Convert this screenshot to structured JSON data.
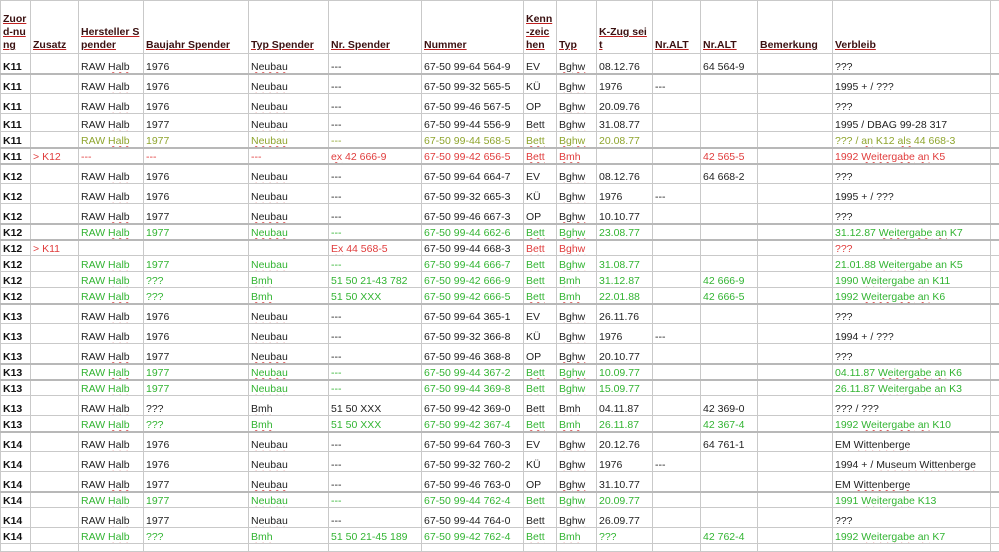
{
  "colors": {
    "black": "#222222",
    "olive": "#8fa52e",
    "red": "#e03c3c",
    "green": "#32b432",
    "grid": "#c9c9c9"
  },
  "headers": [
    "Zuord-nung",
    "Zusatz",
    "Hersteller Spender",
    "Baujahr Spender",
    "Typ Spender",
    "Nr. Spender",
    "Nummer",
    "Kenn-zeichen",
    "Typ",
    "K-Zug seit",
    "Nr.ALT",
    "Nr.ALT",
    "Bemerkung",
    "Verbleib"
  ],
  "rows": [
    {
      "color": "black",
      "cells": [
        "K11",
        "",
        "RAW Halb",
        "1976",
        "Neubau",
        "---",
        "67-50 99-64 564-9",
        "EV",
        "Bghw",
        "08.12.76",
        "",
        "64 564-9",
        "",
        "???"
      ]
    },
    {
      "color": "black",
      "cells": [
        "K11",
        "",
        "RAW Halb",
        "1976",
        "Neubau",
        "---",
        "67-50 99-32 565-5",
        "KÜ",
        "Bghw",
        "1976",
        "---",
        "",
        "",
        "1995 + /  ???"
      ]
    },
    {
      "color": "black",
      "cells": [
        "K11",
        "",
        "RAW Halb",
        "1976",
        "Neubau",
        "---",
        "67-50 99-46 567-5",
        "OP",
        "Bghw",
        "20.09.76",
        "",
        "",
        "",
        "???"
      ]
    },
    {
      "color": "black",
      "cells": [
        "K11",
        "",
        "RAW Halb",
        "1977",
        "Neubau",
        "---",
        "67-50 99-44 556-9",
        "Bett",
        "Bghw",
        "31.08.77",
        "",
        "",
        "",
        "1995 / DBAG 99-28 317"
      ]
    },
    {
      "color": "olive",
      "cells": [
        "K11",
        "",
        "RAW Halb",
        "1977",
        "Neubau",
        "---",
        "67-50 99-44 568-5",
        "Bett",
        "Bghw",
        "20.08.77",
        "",
        "",
        "",
        "??? / an K12 als 44 668-3"
      ]
    },
    {
      "color": "red",
      "cells": [
        "K11",
        "> K12",
        "---",
        "---",
        "---",
        "ex 42 666-9",
        "67-50 99-42 656-5",
        "Bett",
        "Bmh",
        "",
        "",
        "42 565-5",
        "",
        "1992 Weitergabe an K5"
      ]
    },
    {
      "color": "black",
      "cells": [
        "K12",
        "",
        "RAW Halb",
        "1976",
        "Neubau",
        "---",
        "67-50 99-64 664-7",
        "EV",
        "Bghw",
        "08.12.76",
        "",
        "64 668-2",
        "",
        "???"
      ]
    },
    {
      "color": "black",
      "cells": [
        "K12",
        "",
        "RAW Halb",
        "1976",
        "Neubau",
        "---",
        "67-50 99-32 665-3",
        "KÜ",
        "Bghw",
        "1976",
        "---",
        "",
        "",
        "1995 + /  ???"
      ]
    },
    {
      "color": "black",
      "cells": [
        "K12",
        "",
        "RAW Halb",
        "1977",
        "Neubau",
        "---",
        "67-50 99-46 667-3",
        "OP",
        "Bghw",
        "10.10.77",
        "",
        "",
        "",
        "???"
      ]
    },
    {
      "color": "green",
      "cells": [
        "K12",
        "",
        "RAW Halb",
        "1977",
        "Neubau",
        "---",
        "67-50 99-44 662-6",
        "Bett",
        "Bghw",
        "23.08.77",
        "",
        "",
        "",
        "31.12.87 Weitergabe an K7"
      ]
    },
    {
      "color": "red",
      "black_cols": [
        6
      ],
      "cells": [
        "K12",
        "> K11",
        "",
        "",
        "",
        "Ex 44 568-5",
        "67-50 99-44 668-3",
        "Bett",
        "Bghw",
        "",
        "",
        "",
        "",
        "???"
      ]
    },
    {
      "color": "green",
      "cells": [
        "K12",
        "",
        "RAW Halb",
        "1977",
        "Neubau",
        "---",
        "67-50 99-44 666-7",
        "Bett",
        "Bghw",
        "31.08.77",
        "",
        "",
        "",
        "21.01.88 Weitergabe an K5"
      ]
    },
    {
      "color": "green",
      "cells": [
        "K12",
        "",
        "RAW Halb",
        "???",
        "Bmh",
        "51 50 21-43 782",
        "67-50 99-42 666-9",
        "Bett",
        "Bmh",
        "31.12.87",
        "",
        "42 666-9",
        "",
        "1990 Weitergabe an K11"
      ]
    },
    {
      "color": "green",
      "cells": [
        "K12",
        "",
        "RAW Halb",
        "???",
        "Bmh",
        "51 50 XXX",
        "67-50 99-42 666-5",
        "Bett",
        "Bmh",
        "22.01.88",
        "",
        "42 666-5",
        "",
        "1992 Weitergabe an K6"
      ]
    },
    {
      "color": "black",
      "cells": [
        "K13",
        "",
        "RAW Halb",
        "1976",
        "Neubau",
        "---",
        "67-50 99-64 365-1",
        "EV",
        "Bghw",
        "26.11.76",
        "",
        "",
        "",
        "???"
      ]
    },
    {
      "color": "black",
      "cells": [
        "K13",
        "",
        "RAW Halb",
        "1976",
        "Neubau",
        "---",
        "67-50 99-32 366-8",
        "KÜ",
        "Bghw",
        "1976",
        "---",
        "",
        "",
        "1994 + / ???"
      ]
    },
    {
      "color": "black",
      "cells": [
        "K13",
        "",
        "RAW Halb",
        "1977",
        "Neubau",
        "---",
        "67-50 99-46 368-8",
        "OP",
        "Bghw",
        "20.10.77",
        "",
        "",
        "",
        "???"
      ]
    },
    {
      "color": "green",
      "cells": [
        "K13",
        "",
        "RAW Halb",
        "1977",
        "Neubau",
        "---",
        "67-50 99-44 367-2",
        "Bett",
        "Bghw",
        "10.09.77",
        "",
        "",
        "",
        "04.11.87 Weitergabe an K6"
      ]
    },
    {
      "color": "green",
      "cells": [
        "K13",
        "",
        "RAW Halb",
        "1977",
        "Neubau",
        "---",
        "67-50 99-44 369-8",
        "Bett",
        "Bghw",
        "15.09.77",
        "",
        "",
        "",
        "26.11.87 Weitergabe an K3"
      ]
    },
    {
      "color": "black",
      "cells": [
        "K13",
        "",
        "RAW Halb",
        "???",
        "Bmh",
        "51 50 XXX",
        "67-50 99-42 369-0",
        "Bett",
        "Bmh",
        "04.11.87",
        "",
        "42 369-0",
        "",
        "??? / ???"
      ]
    },
    {
      "color": "green",
      "cells": [
        "K13",
        "",
        "RAW Halb",
        "???",
        "Bmh",
        "51 50 XXX",
        "67-50 99-42 367-4",
        "Bett",
        "Bmh",
        "26.11.87",
        "",
        "42 367-4",
        "",
        "1992 Weitergabe an K10"
      ]
    },
    {
      "color": "black",
      "cells": [
        "K14",
        "",
        "RAW Halb",
        "1976",
        "Neubau",
        "---",
        "67-50 99-64 760-3",
        "EV",
        "Bghw",
        "20.12.76",
        "",
        "64 761-1",
        "",
        "EM Wittenberge"
      ]
    },
    {
      "color": "black",
      "cells": [
        "K14",
        "",
        "RAW Halb",
        "1976",
        "Neubau",
        "---",
        "67-50 99-32 760-2",
        "KÜ",
        "Bghw",
        "1976",
        "---",
        "",
        "",
        "1994 + / Museum Wittenberge"
      ]
    },
    {
      "color": "black",
      "cells": [
        "K14",
        "",
        "RAW Halb",
        "1977",
        "Neubau",
        "---",
        "67-50 99-46 763-0",
        "OP",
        "Bghw",
        "31.10.77",
        "",
        "",
        "",
        "EM Wittenberge"
      ]
    },
    {
      "color": "green",
      "cells": [
        "K14",
        "",
        "RAW Halb",
        "1977",
        "Neubau",
        "---",
        "67-50 99-44 762-4",
        "Bett",
        "Bghw",
        "20.09.77",
        "",
        "",
        "",
        "1991 Weitergabe K13"
      ]
    },
    {
      "color": "black",
      "cells": [
        "K14",
        "",
        "RAW Halb",
        "1977",
        "Neubau",
        "---",
        "67-50 99-44 764-0",
        "Bett",
        "Bghw",
        "26.09.77",
        "",
        "",
        "",
        "???"
      ]
    },
    {
      "color": "green",
      "cells": [
        "K14",
        "",
        "RAW Halb",
        "???",
        "Bmh",
        "51 50 21-45 189",
        "67-50 99-42 762-4",
        "Bett",
        "Bmh",
        "???",
        "",
        "42 762-4",
        "",
        "1992 Weitergabe an K7"
      ]
    },
    {
      "color": "black",
      "cells": [
        "",
        "",
        "",
        "",
        "",
        "",
        "",
        "",
        "",
        "",
        "",
        "",
        "",
        ""
      ]
    }
  ]
}
